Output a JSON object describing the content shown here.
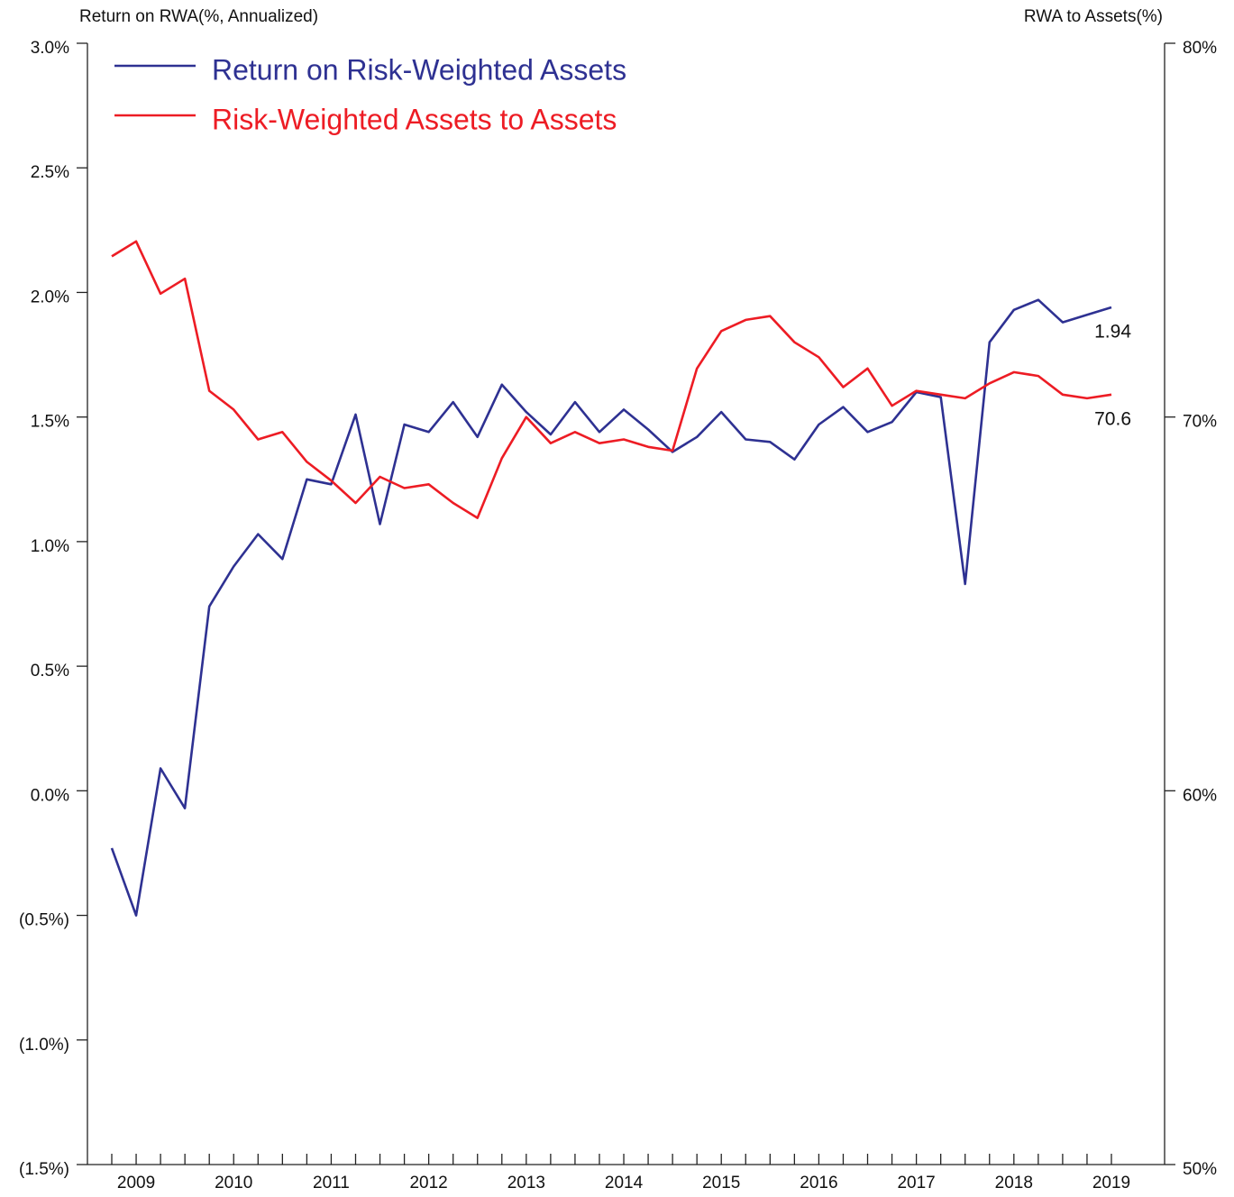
{
  "chart_data": {
    "type": "line",
    "y_label": "Return on RWA(%, Annualized)",
    "y2_label": "RWA to Assets(%)",
    "categories": [
      null,
      "2009",
      null,
      null,
      null,
      "2010",
      null,
      null,
      null,
      "2011",
      null,
      null,
      null,
      "2012",
      null,
      null,
      null,
      "2013",
      null,
      null,
      null,
      "2014",
      null,
      null,
      null,
      "2015",
      null,
      null,
      null,
      "2016",
      null,
      null,
      null,
      "2017",
      null,
      null,
      null,
      "2018",
      null,
      null,
      null,
      "2019"
    ],
    "series": [
      {
        "name": "Return on Risk-Weighted Assets",
        "color": "#2e3192",
        "axis": "y",
        "values": [
          -0.23,
          -0.5,
          0.09,
          -0.07,
          0.74,
          0.9,
          1.03,
          0.93,
          1.25,
          1.23,
          1.51,
          1.07,
          1.47,
          1.44,
          1.56,
          1.42,
          1.63,
          1.52,
          1.43,
          1.56,
          1.44,
          1.53,
          1.45,
          1.36,
          1.42,
          1.52,
          1.41,
          1.4,
          1.33,
          1.47,
          1.54,
          1.44,
          1.48,
          1.6,
          1.58,
          0.83,
          1.8,
          1.93,
          1.97,
          1.88,
          1.91,
          1.94
        ]
      },
      {
        "name": "Risk-Weighted Assets to Assets",
        "color": "#ed1c24",
        "axis": "y2",
        "values": [
          74.3,
          74.7,
          73.3,
          73.7,
          70.7,
          70.2,
          69.4,
          69.6,
          68.8,
          68.3,
          67.7,
          68.4,
          68.1,
          68.2,
          67.7,
          67.3,
          68.9,
          70.0,
          69.3,
          69.6,
          69.3,
          69.4,
          69.2,
          69.1,
          71.3,
          72.3,
          72.6,
          72.7,
          72.0,
          71.6,
          70.8,
          71.3,
          70.3,
          70.7,
          70.6,
          70.5,
          70.9,
          71.2,
          71.1,
          70.6,
          70.5,
          70.6
        ]
      }
    ],
    "ylim": [
      -1.5,
      3.0
    ],
    "yticks": [
      {
        "value": -1.5,
        "label": "(1.5%)"
      },
      {
        "value": -1.0,
        "label": "(1.0%)"
      },
      {
        "value": -0.5,
        "label": "(0.5%)"
      },
      {
        "value": 0.0,
        "label": "0.0%"
      },
      {
        "value": 0.5,
        "label": "0.5%"
      },
      {
        "value": 1.0,
        "label": "1.0%"
      },
      {
        "value": 1.5,
        "label": "1.5%"
      },
      {
        "value": 2.0,
        "label": "2.0%"
      },
      {
        "value": 2.5,
        "label": "2.5%"
      },
      {
        "value": 3.0,
        "label": "3.0%"
      }
    ],
    "y2lim": [
      50,
      80
    ],
    "y2ticks": [
      {
        "value": 50,
        "label": "50%"
      },
      {
        "value": 60,
        "label": "60%"
      },
      {
        "value": 70,
        "label": "70%"
      },
      {
        "value": 80,
        "label": "80%"
      }
    ],
    "legend": "upper left"
  }
}
